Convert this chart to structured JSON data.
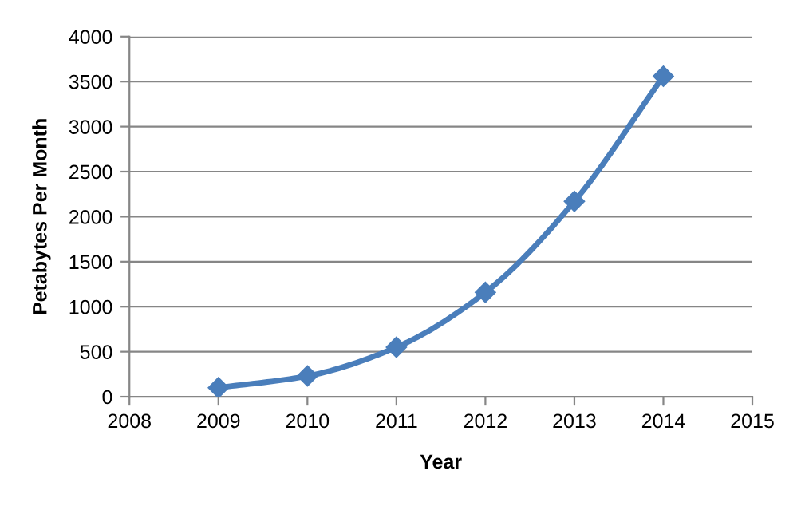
{
  "chart_data": {
    "type": "line",
    "xlabel": "Year",
    "ylabel": "Petabytes Per Month",
    "x": [
      2009,
      2010,
      2011,
      2012,
      2013,
      2014
    ],
    "series": [
      {
        "color": "#4a7ebb",
        "values": [
          100,
          230,
          550,
          1160,
          2170,
          3560
        ]
      }
    ],
    "xlim": [
      2008,
      2015
    ],
    "xticks": [
      2008,
      2009,
      2010,
      2011,
      2012,
      2013,
      2014,
      2015
    ],
    "ylim": [
      0,
      4000
    ],
    "yticks": [
      0,
      500,
      1000,
      1500,
      2000,
      2500,
      3000,
      3500,
      4000
    ],
    "grid": "y",
    "marker": "diamond",
    "line_style": "solid",
    "legend": false
  }
}
